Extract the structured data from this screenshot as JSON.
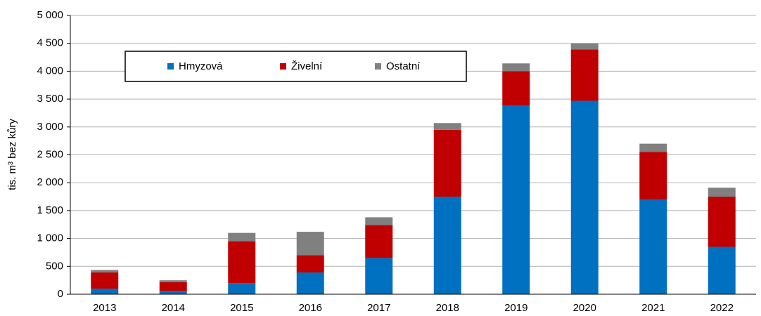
{
  "chart_data": {
    "type": "stacked_bar",
    "y_label": "tis. m³ bez kůry",
    "categories": [
      "2013",
      "2014",
      "2015",
      "2016",
      "2017",
      "2018",
      "2019",
      "2020",
      "2021",
      "2022"
    ],
    "series": [
      {
        "name": "Hmyzová",
        "color": "#0070c0",
        "values": [
          100,
          60,
          200,
          390,
          650,
          1750,
          3380,
          3470,
          1700,
          850
        ]
      },
      {
        "name": "Živelní",
        "color": "#c00000",
        "values": [
          290,
          155,
          750,
          310,
          590,
          1200,
          620,
          920,
          850,
          900
        ]
      },
      {
        "name": "Ostatní",
        "color": "#808080",
        "values": [
          45,
          35,
          150,
          420,
          140,
          120,
          140,
          110,
          150,
          160
        ]
      }
    ],
    "ylim": [
      0,
      5000
    ],
    "yticks": [
      0,
      500,
      {
        "value": 1000,
        "label": "1 000"
      },
      {
        "value": 1500,
        "label": "1 500"
      },
      {
        "value": 2000,
        "label": "2 000"
      },
      {
        "value": 2500,
        "label": "2 500"
      },
      {
        "value": 3000,
        "label": "3 000"
      },
      {
        "value": 3500,
        "label": "3 500"
      },
      {
        "value": 4000,
        "label": "4 000"
      },
      {
        "value": 4500,
        "label": "4 500"
      },
      {
        "value": 5000,
        "label": "5 000"
      }
    ],
    "grid": true,
    "legend": "top-left"
  }
}
